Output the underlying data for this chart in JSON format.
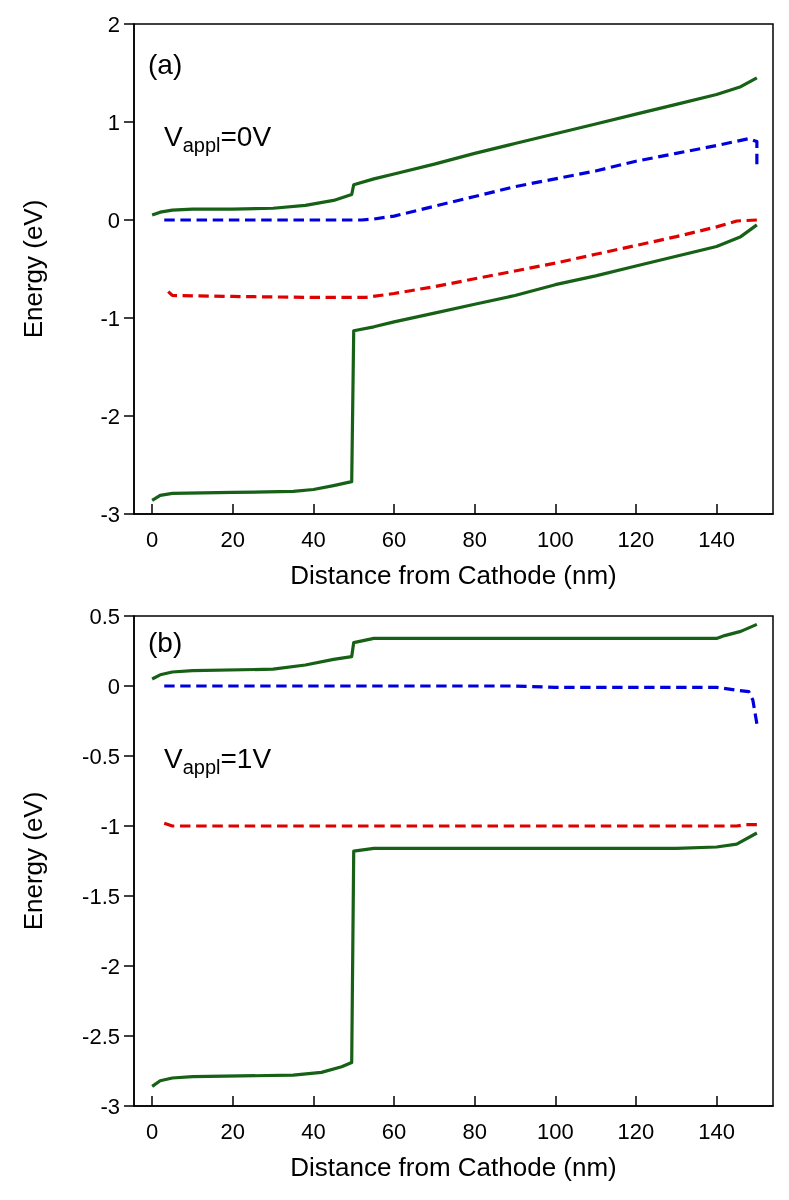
{
  "chart_data": [
    {
      "type": "line",
      "xlabel": "Distance from Cathode (nm)",
      "ylabel": "Energy (eV)",
      "annotations": [
        "(a)",
        "V$_{appl}$=0V"
      ],
      "xlim": [
        -4.5,
        154
      ],
      "xticks": [
        0,
        20,
        40,
        60,
        80,
        100,
        120,
        140
      ],
      "ylim": [
        -3,
        2
      ],
      "yticks": [
        -3,
        -2,
        -1,
        0,
        1,
        2
      ],
      "grid": false,
      "marker": "none",
      "series": [
        {
          "color": "#176117",
          "line_style": "solid",
          "x": [
            0,
            2,
            5,
            10,
            20,
            30,
            38,
            45,
            49.5,
            50,
            55,
            60,
            70,
            80,
            90,
            100,
            110,
            120,
            130,
            140,
            146,
            150
          ],
          "values": [
            0.05,
            0.08,
            0.1,
            0.11,
            0.11,
            0.12,
            0.15,
            0.2,
            0.26,
            0.36,
            0.42,
            0.47,
            0.57,
            0.68,
            0.78,
            0.88,
            0.98,
            1.08,
            1.18,
            1.28,
            1.36,
            1.45
          ]
        },
        {
          "color": "#0000dd",
          "line_style": "dashed",
          "x": [
            3,
            20,
            40,
            52,
            55,
            60,
            70,
            80,
            90,
            100,
            110,
            120,
            130,
            140,
            148,
            150,
            150
          ],
          "values": [
            0,
            0,
            0,
            0,
            0.01,
            0.04,
            0.14,
            0.24,
            0.34,
            0.42,
            0.5,
            0.6,
            0.68,
            0.76,
            0.83,
            0.8,
            0.57
          ]
        },
        {
          "color": "#e00000",
          "line_style": "dashed",
          "x": [
            4,
            5,
            20,
            40,
            53,
            60,
            70,
            80,
            90,
            100,
            110,
            120,
            130,
            140,
            145,
            150
          ],
          "values": [
            -0.73,
            -0.77,
            -0.78,
            -0.79,
            -0.79,
            -0.75,
            -0.68,
            -0.6,
            -0.52,
            -0.44,
            -0.35,
            -0.26,
            -0.17,
            -0.07,
            -0.01,
            0
          ]
        },
        {
          "color": "#176117",
          "line_style": "solid",
          "x": [
            0,
            2,
            5,
            20,
            35,
            40,
            45,
            49.5,
            50,
            55,
            60,
            70,
            80,
            90,
            100,
            110,
            120,
            130,
            140,
            146,
            150
          ],
          "values": [
            -2.86,
            -2.81,
            -2.79,
            -2.78,
            -2.77,
            -2.75,
            -2.71,
            -2.67,
            -1.13,
            -1.09,
            -1.04,
            -0.95,
            -0.86,
            -0.77,
            -0.66,
            -0.57,
            -0.47,
            -0.37,
            -0.27,
            -0.17,
            -0.05
          ]
        }
      ]
    },
    {
      "type": "line",
      "xlabel": "Distance from Cathode (nm)",
      "ylabel": "Energy (eV)",
      "annotations": [
        "(b)",
        "V$_{appl}$=1V"
      ],
      "xlim": [
        -4.5,
        154
      ],
      "xticks": [
        0,
        20,
        40,
        60,
        80,
        100,
        120,
        140
      ],
      "ylim": [
        -3,
        0.5
      ],
      "yticks": [
        -3,
        -2.5,
        -2,
        -1.5,
        -1,
        -0.5,
        0,
        0.5
      ],
      "grid": false,
      "marker": "none",
      "series": [
        {
          "color": "#176117",
          "line_style": "solid",
          "x": [
            0,
            2,
            5,
            10,
            30,
            38,
            45,
            49.5,
            50,
            55,
            60,
            100,
            140,
            142,
            146,
            150
          ],
          "values": [
            0.05,
            0.08,
            0.1,
            0.11,
            0.12,
            0.15,
            0.19,
            0.21,
            0.31,
            0.34,
            0.34,
            0.34,
            0.34,
            0.36,
            0.39,
            0.44
          ]
        },
        {
          "color": "#0000dd",
          "line_style": "dashed",
          "x": [
            3,
            50,
            90,
            100,
            140,
            145,
            148,
            149,
            150
          ],
          "values": [
            0,
            0,
            0,
            -0.01,
            -0.01,
            -0.03,
            -0.04,
            -0.1,
            -0.27
          ]
        },
        {
          "color": "#e00000",
          "line_style": "dashed",
          "x": [
            3,
            5,
            50,
            100,
            145,
            147,
            150
          ],
          "values": [
            -0.98,
            -1,
            -1,
            -1,
            -1,
            -0.99,
            -0.99
          ]
        },
        {
          "color": "#176117",
          "line_style": "solid",
          "x": [
            0,
            2,
            5,
            10,
            35,
            42,
            47,
            49.5,
            50,
            55,
            100,
            130,
            140,
            145,
            150
          ],
          "values": [
            -2.86,
            -2.82,
            -2.8,
            -2.79,
            -2.78,
            -2.76,
            -2.72,
            -2.69,
            -1.18,
            -1.16,
            -1.16,
            -1.16,
            -1.15,
            -1.13,
            -1.05
          ]
        }
      ]
    }
  ]
}
